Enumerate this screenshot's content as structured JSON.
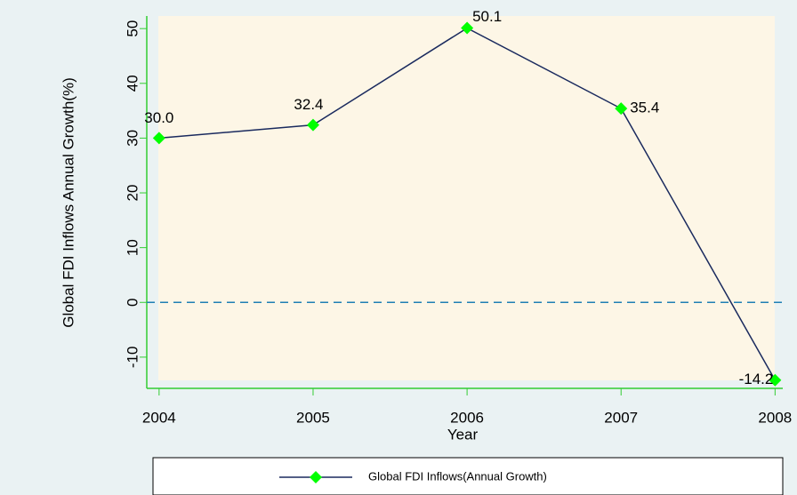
{
  "chart_data": {
    "type": "line",
    "x_label": "Year",
    "y_label": "Global FDI Inflows Annual Growth(%)",
    "x": [
      2004,
      2005,
      2006,
      2007,
      2008
    ],
    "series": [
      {
        "name": "Global FDI Inflows(Annual Growth)",
        "color": "#1a2a5e",
        "marker_color": "#00ff00",
        "values": [
          30,
          32.4,
          50.1,
          35.4,
          -14.2
        ],
        "value_labels": [
          "30.0",
          "32.4",
          "50.1",
          "35.4",
          "-14.2"
        ]
      }
    ],
    "xlim": [
      2003.92,
      2008.05
    ],
    "xticks": [
      2004,
      2005,
      2006,
      2007,
      2008
    ],
    "ylim": [
      -15.7,
      52.3
    ],
    "yticks": [
      -10,
      0,
      10,
      20,
      30,
      40,
      50
    ],
    "hline": 0,
    "legend": "bottom"
  }
}
